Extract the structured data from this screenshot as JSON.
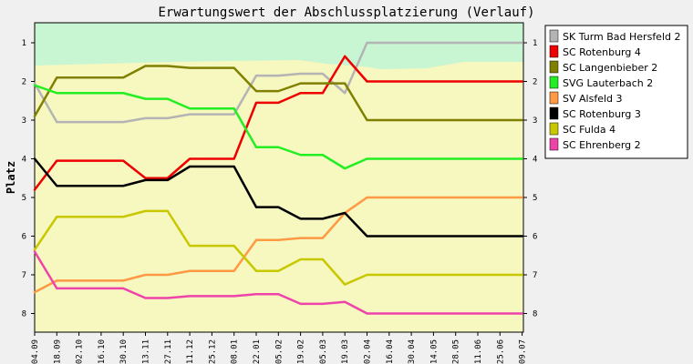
{
  "chart_data": {
    "type": "line",
    "title": "Erwartungswert der Abschlussplatzierung (Verlauf)",
    "ylabel": "Platz",
    "xlabel": "",
    "ylim": [
      0.5,
      8.5
    ],
    "y_reversed": true,
    "yticks": [
      1,
      2,
      3,
      4,
      5,
      6,
      7,
      8
    ],
    "grid": false,
    "legend_position": "right",
    "background_zones": [
      {
        "color": "#c8f5d2",
        "label": ""
      },
      {
        "color": "#f7f7c0",
        "label": ""
      }
    ],
    "x": [
      "04.09",
      "18.09",
      "02.10",
      "16.10",
      "30.10",
      "13.11",
      "27.11",
      "11.12",
      "25.12",
      "08.01",
      "22.01",
      "05.02",
      "19.02",
      "05.03",
      "19.03",
      "02.04",
      "16.04",
      "30.04",
      "14.05",
      "28.05",
      "11.06",
      "25.06",
      "09.07"
    ],
    "series": [
      {
        "name": "SK Turm Bad Hersfeld 2",
        "color": "#b4b4b4",
        "values": [
          2.05,
          3.05,
          3.05,
          3.05,
          3.05,
          2.95,
          2.95,
          2.85,
          2.85,
          2.85,
          1.85,
          1.85,
          1.8,
          1.8,
          2.3,
          1.0,
          1.0,
          1.0,
          1.0,
          1.0,
          1.0,
          1.0,
          1.0
        ]
      },
      {
        "name": "SC Rotenburg 4",
        "color": "#ee0000",
        "values": [
          4.8,
          4.05,
          4.05,
          4.05,
          4.05,
          4.5,
          4.5,
          4.0,
          4.0,
          4.0,
          2.55,
          2.55,
          2.3,
          2.3,
          1.35,
          2.0,
          2.0,
          2.0,
          2.0,
          2.0,
          2.0,
          2.0,
          2.0
        ]
      },
      {
        "name": "SC Langenbieber 2",
        "color": "#808000",
        "values": [
          2.9,
          1.9,
          1.9,
          1.9,
          1.9,
          1.6,
          1.6,
          1.65,
          1.65,
          1.65,
          2.25,
          2.25,
          2.05,
          2.05,
          2.05,
          3.0,
          3.0,
          3.0,
          3.0,
          3.0,
          3.0,
          3.0,
          3.0
        ]
      },
      {
        "name": "SVG Lauterbach 2",
        "color": "#22ee22",
        "values": [
          2.1,
          2.3,
          2.3,
          2.3,
          2.3,
          2.45,
          2.45,
          2.7,
          2.7,
          2.7,
          3.7,
          3.7,
          3.9,
          3.9,
          4.25,
          4.0,
          4.0,
          4.0,
          4.0,
          4.0,
          4.0,
          4.0,
          4.0
        ]
      },
      {
        "name": "SV Alsfeld 3",
        "color": "#ff9944",
        "values": [
          7.45,
          7.15,
          7.15,
          7.15,
          7.15,
          7.0,
          7.0,
          6.9,
          6.9,
          6.9,
          6.1,
          6.1,
          6.05,
          6.05,
          5.4,
          5.0,
          5.0,
          5.0,
          5.0,
          5.0,
          5.0,
          5.0,
          5.0
        ]
      },
      {
        "name": "SC Rotenburg 3",
        "color": "#000000",
        "values": [
          4.0,
          4.7,
          4.7,
          4.7,
          4.7,
          4.55,
          4.55,
          4.2,
          4.2,
          4.2,
          5.25,
          5.25,
          5.55,
          5.55,
          5.4,
          6.0,
          6.0,
          6.0,
          6.0,
          6.0,
          6.0,
          6.0,
          6.0
        ]
      },
      {
        "name": "SC Fulda 4",
        "color": "#c8c800",
        "values": [
          6.35,
          5.5,
          5.5,
          5.5,
          5.5,
          5.35,
          5.35,
          6.25,
          6.25,
          6.25,
          6.9,
          6.9,
          6.6,
          6.6,
          7.25,
          7.0,
          7.0,
          7.0,
          7.0,
          7.0,
          7.0,
          7.0,
          7.0
        ]
      },
      {
        "name": "SC Ehrenberg 2",
        "color": "#ee44aa",
        "values": [
          6.4,
          7.35,
          7.35,
          7.35,
          7.35,
          7.6,
          7.6,
          7.55,
          7.55,
          7.55,
          7.5,
          7.5,
          7.75,
          7.75,
          7.7,
          8.0,
          8.0,
          8.0,
          8.0,
          8.0,
          8.0,
          8.0,
          8.0
        ]
      }
    ]
  },
  "colors": {
    "page_background": "#f0f0f0",
    "plot_green_zone": "#c8f5d2",
    "plot_yellow_zone": "#f7f7c0"
  }
}
